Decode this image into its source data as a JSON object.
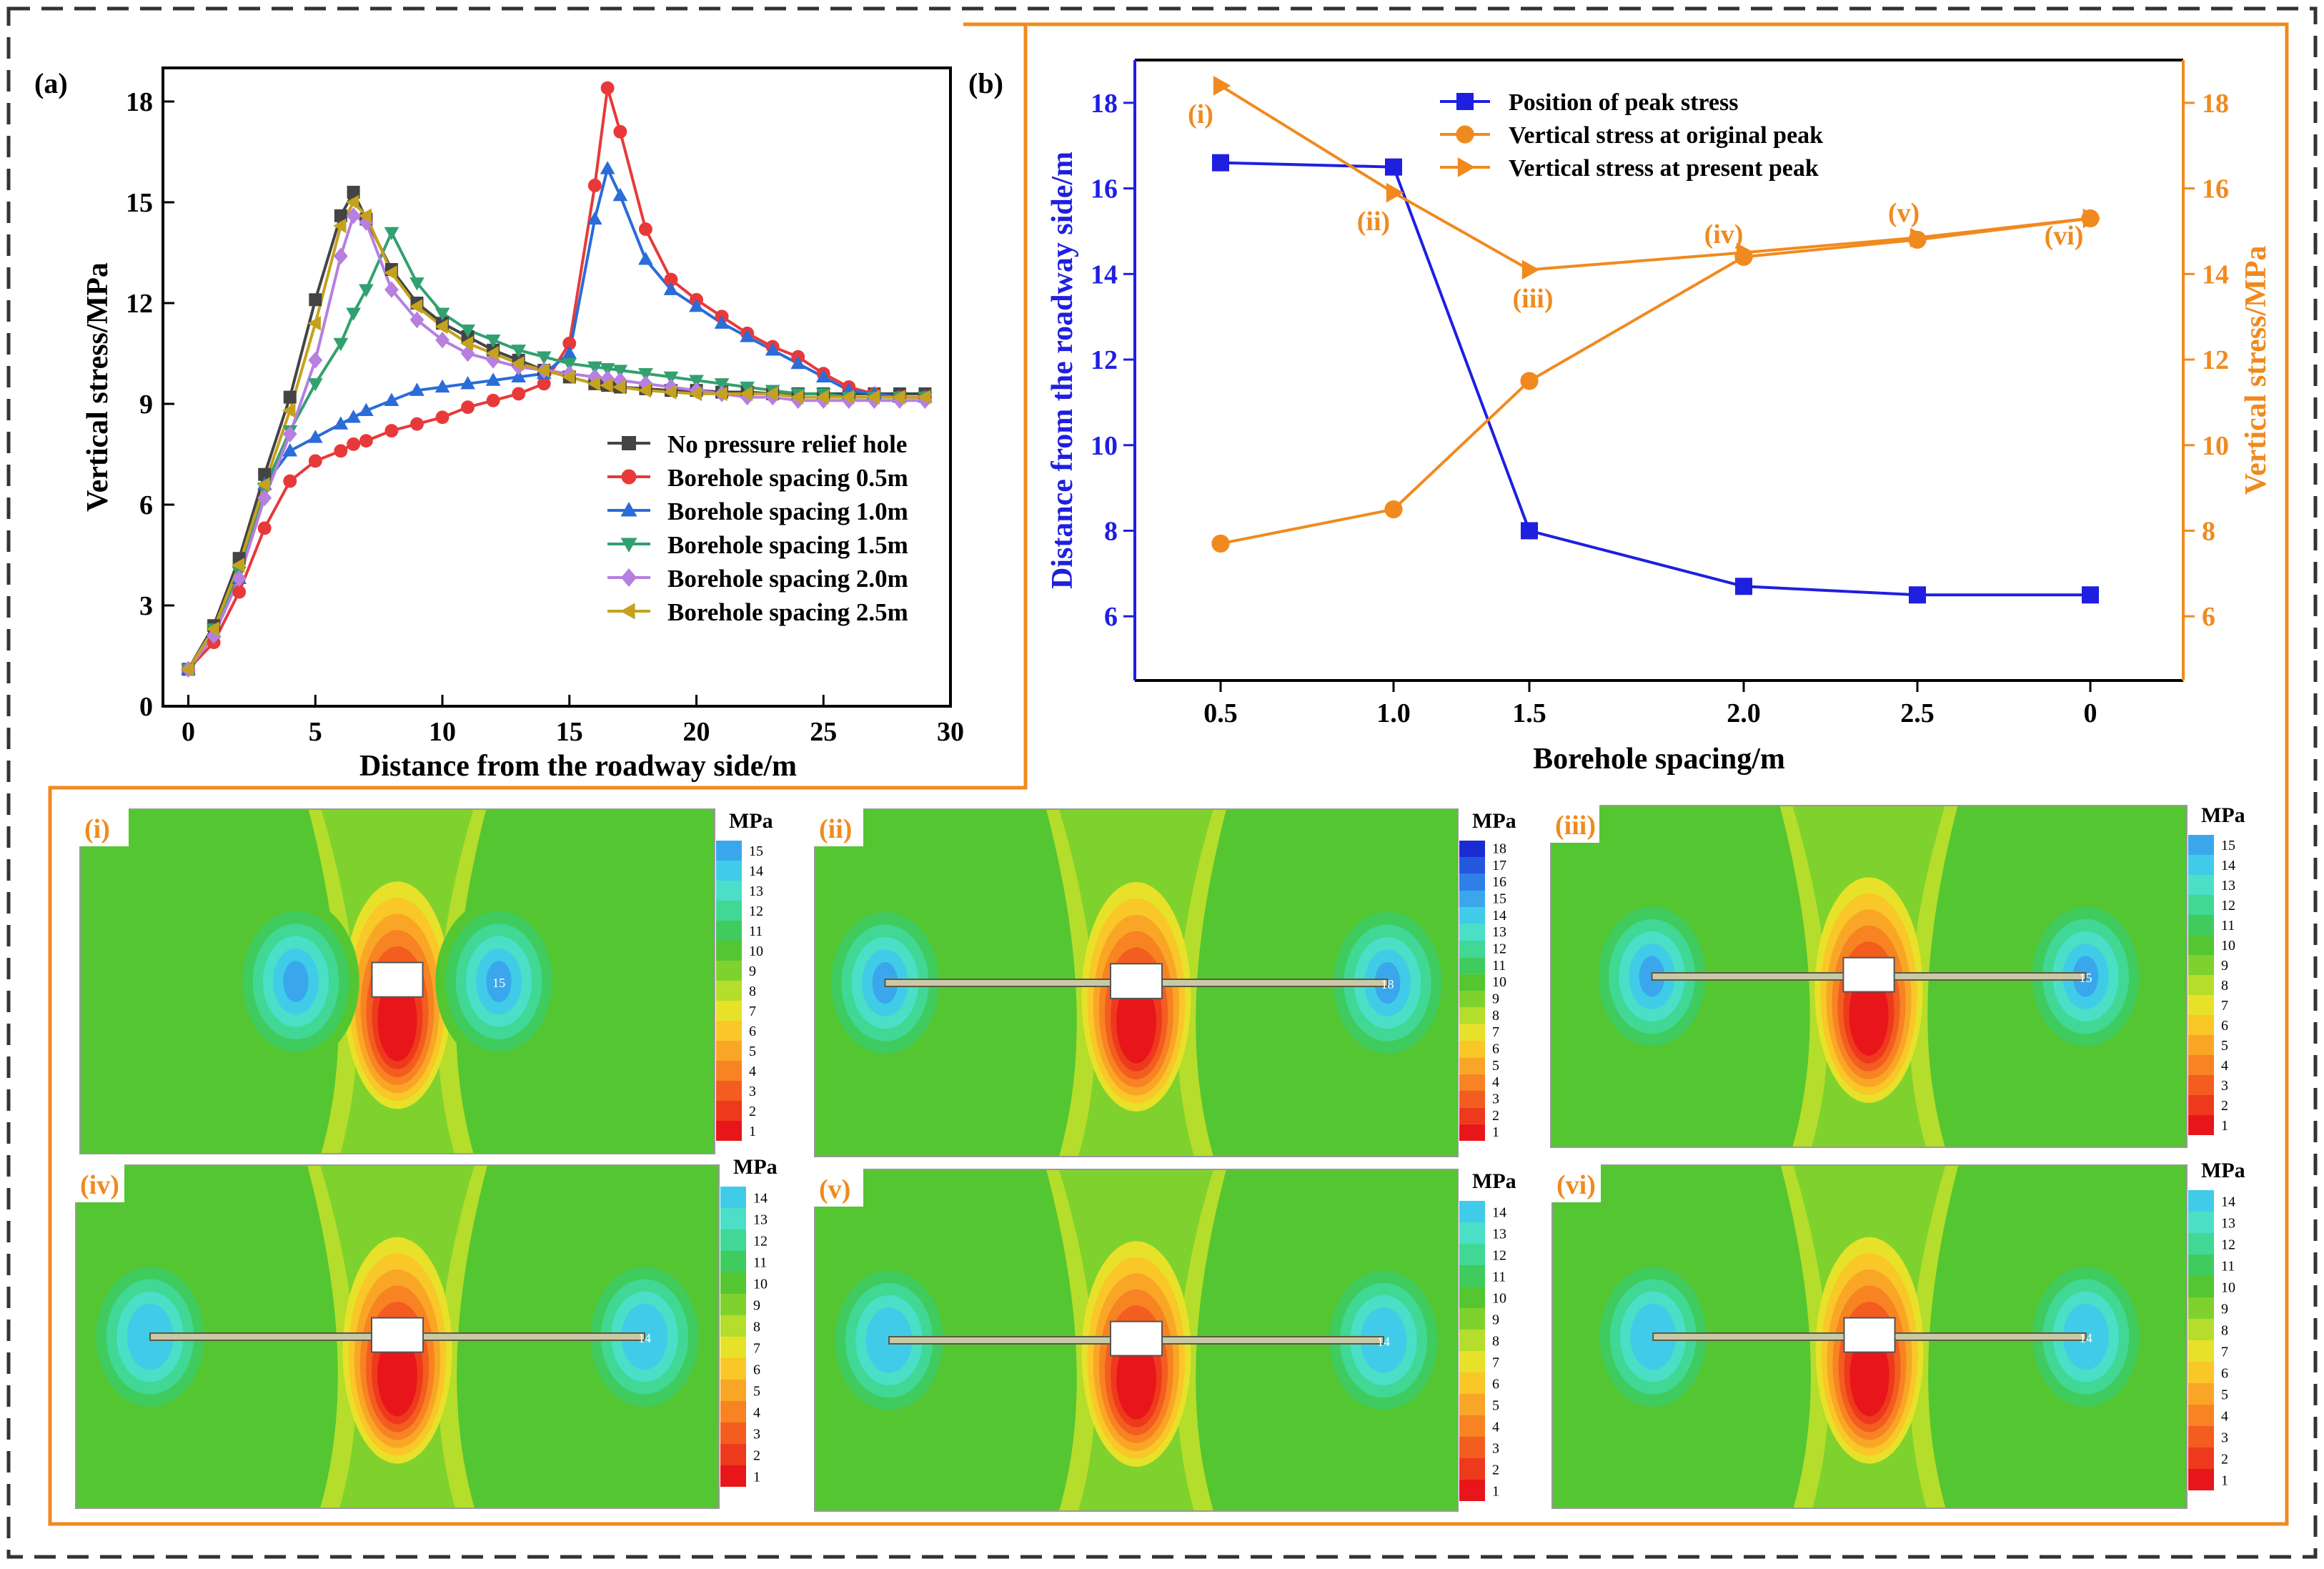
{
  "colors": {
    "frame_orange": "#F08A1E",
    "dash": "#333333",
    "blue_axis": "#1F1FE0",
    "orange_axis": "#F08A1E"
  },
  "chart_data": [
    {
      "id": "a",
      "type": "line",
      "panel_label": "(a)",
      "xlabel": "Distance from the roadway side/m",
      "ylabel": "Vertical stress/MPa",
      "xlim": [
        -1,
        30
      ],
      "ylim": [
        0,
        19
      ],
      "xticks": [
        0,
        5,
        10,
        15,
        20,
        25,
        30
      ],
      "yticks": [
        0,
        3,
        6,
        9,
        12,
        15,
        18
      ],
      "legend_position": "lower-right",
      "x": [
        0,
        1,
        2,
        3,
        4,
        5,
        6,
        6.5,
        7,
        8,
        9,
        10,
        11,
        12,
        13,
        14,
        15,
        16,
        16.5,
        17,
        18,
        19,
        20,
        21,
        22,
        23,
        24,
        25,
        26,
        27,
        28,
        29
      ],
      "series": [
        {
          "name": "No pressure relief hole",
          "color": "#444444",
          "marker": "square",
          "values": [
            1.1,
            2.4,
            4.4,
            6.9,
            9.2,
            12.1,
            14.6,
            15.3,
            14.5,
            13.0,
            12.0,
            11.4,
            11.0,
            10.6,
            10.3,
            10.0,
            9.8,
            9.6,
            9.55,
            9.5,
            9.45,
            9.4,
            9.4,
            9.35,
            9.35,
            9.3,
            9.3,
            9.3,
            9.3,
            9.3,
            9.3,
            9.3
          ]
        },
        {
          "name": "Borehole spacing 0.5m",
          "color": "#E8393A",
          "marker": "circle",
          "values": [
            1.1,
            1.9,
            3.4,
            5.3,
            6.7,
            7.3,
            7.6,
            7.8,
            7.9,
            8.2,
            8.4,
            8.6,
            8.9,
            9.1,
            9.3,
            9.6,
            10.8,
            15.5,
            18.4,
            17.1,
            14.2,
            12.7,
            12.1,
            11.6,
            11.1,
            10.7,
            10.4,
            9.9,
            9.5,
            9.3,
            9.2,
            9.2
          ]
        },
        {
          "name": "Borehole spacing 1.0m",
          "color": "#2A6CD8",
          "marker": "triangle-up",
          "values": [
            1.1,
            2.2,
            3.8,
            6.6,
            7.6,
            8.0,
            8.4,
            8.6,
            8.8,
            9.1,
            9.4,
            9.5,
            9.6,
            9.7,
            9.8,
            9.9,
            10.5,
            14.5,
            16.0,
            15.2,
            13.3,
            12.4,
            11.9,
            11.4,
            11.0,
            10.6,
            10.2,
            9.8,
            9.4,
            9.3,
            9.2,
            9.2
          ]
        },
        {
          "name": "Borehole spacing 1.5m",
          "color": "#33A070",
          "marker": "triangle-down",
          "values": [
            1.1,
            2.3,
            4.0,
            6.5,
            8.2,
            9.6,
            10.8,
            11.7,
            12.4,
            14.1,
            12.6,
            11.7,
            11.2,
            10.9,
            10.6,
            10.4,
            10.2,
            10.1,
            10.05,
            10.0,
            9.9,
            9.8,
            9.7,
            9.6,
            9.5,
            9.4,
            9.3,
            9.3,
            9.2,
            9.2,
            9.2,
            9.2
          ]
        },
        {
          "name": "Borehole spacing 2.0m",
          "color": "#B67FE0",
          "marker": "diamond",
          "values": [
            1.1,
            2.1,
            3.8,
            6.2,
            8.1,
            10.3,
            13.4,
            14.6,
            14.4,
            12.4,
            11.5,
            10.9,
            10.5,
            10.3,
            10.1,
            10.0,
            9.9,
            9.8,
            9.75,
            9.7,
            9.6,
            9.5,
            9.4,
            9.3,
            9.2,
            9.2,
            9.1,
            9.1,
            9.1,
            9.1,
            9.1,
            9.1
          ]
        },
        {
          "name": "Borehole spacing 2.5m",
          "color": "#C5A21E",
          "marker": "triangle-left",
          "values": [
            1.1,
            2.3,
            4.2,
            6.6,
            8.8,
            11.4,
            14.3,
            15.0,
            14.6,
            12.9,
            11.9,
            11.3,
            10.8,
            10.5,
            10.2,
            10.0,
            9.8,
            9.6,
            9.55,
            9.5,
            9.4,
            9.35,
            9.3,
            9.3,
            9.3,
            9.3,
            9.2,
            9.2,
            9.2,
            9.2,
            9.2,
            9.2
          ]
        }
      ]
    },
    {
      "id": "b",
      "type": "line",
      "panel_label": "(b)",
      "xlabel": "Borehole spacing/m",
      "ylabel_left": "Distance from the roadway side/m",
      "ylabel_right": "Vertical stress/MPa",
      "categories": [
        "0.5",
        "1.0",
        "1.5",
        "2.0",
        "2.5",
        "0"
      ],
      "ylim_left": [
        4.5,
        19
      ],
      "ylim_right": [
        4.5,
        19
      ],
      "yticks_left": [
        6,
        8,
        10,
        12,
        14,
        16,
        18
      ],
      "yticks_right": [
        6,
        8,
        10,
        12,
        14,
        16,
        18
      ],
      "legend_position": "top-center",
      "series": [
        {
          "name": "Position of peak stress",
          "axis": "left",
          "color": "#1F1FE0",
          "marker": "square",
          "values": [
            16.6,
            16.5,
            8.0,
            6.7,
            6.5,
            6.5
          ]
        },
        {
          "name": "Vertical stress at original peak",
          "axis": "right",
          "color": "#F08A1E",
          "marker": "circle",
          "values": [
            7.7,
            8.5,
            11.5,
            14.4,
            14.8,
            15.3
          ]
        },
        {
          "name": "Vertical stress at present peak",
          "axis": "right",
          "color": "#F08A1E",
          "marker": "triangle-right",
          "values": [
            18.4,
            15.9,
            14.1,
            14.5,
            14.85,
            15.3
          ]
        }
      ],
      "annotations": [
        "(i)",
        "(ii)",
        "(iii)",
        "(iv)",
        "(v)",
        "(vi)"
      ]
    }
  ],
  "contours": {
    "unit": "MPa",
    "panels": [
      {
        "label": "(i)",
        "max": 15,
        "hole_fraction": 0.0,
        "peak": "15"
      },
      {
        "label": "(ii)",
        "max": 18,
        "hole_fraction": 0.63,
        "peak": "18"
      },
      {
        "label": "(iii)",
        "max": 15,
        "hole_fraction": 0.55,
        "peak": "15"
      },
      {
        "label": "(iv)",
        "max": 14,
        "hole_fraction": 0.62,
        "peak": "14"
      },
      {
        "label": "(v)",
        "max": 14,
        "hole_fraction": 0.62,
        "peak": "14"
      },
      {
        "label": "(vi)",
        "max": 14,
        "hole_fraction": 0.55,
        "peak": "14"
      }
    ],
    "colorbar_palette": [
      "#E8161A",
      "#EE3A1C",
      "#F35D20",
      "#F78323",
      "#F9A626",
      "#F9C728",
      "#E8E12A",
      "#B5DD2B",
      "#7FD22E",
      "#54C632",
      "#3FCB5E",
      "#41D794",
      "#4ADFC6",
      "#40CCE8",
      "#3AA7EC",
      "#2F7FE8",
      "#2456DE",
      "#1A2CD2"
    ]
  }
}
